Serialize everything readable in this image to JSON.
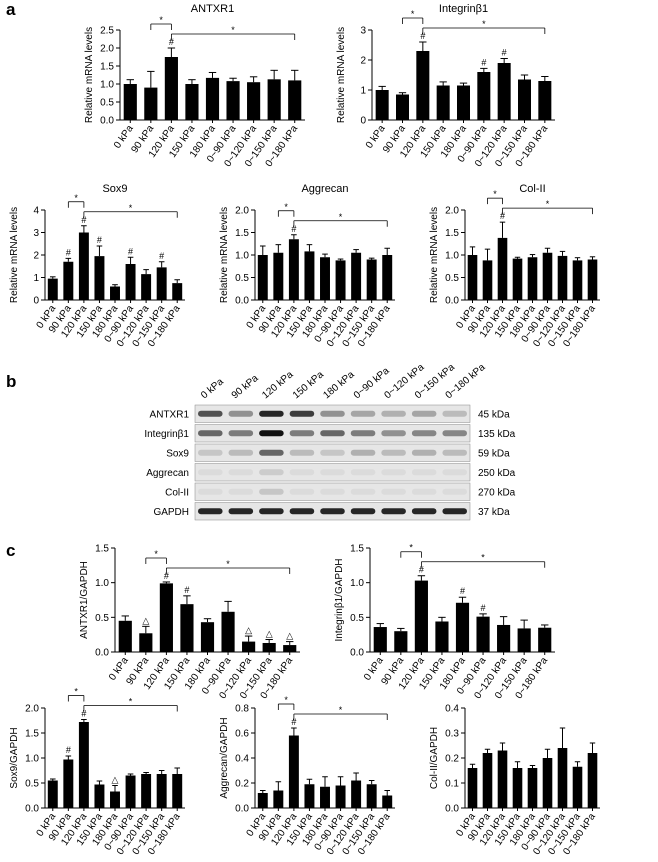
{
  "panel_labels": [
    "a",
    "b",
    "c"
  ],
  "chart_data": [
    {
      "type": "bar",
      "title": "ANTXR1",
      "ylabel": "Relative mRNA levels",
      "categories": [
        "0 kPa",
        "90 kPa",
        "120 kPa",
        "150 kPa",
        "180 kPa",
        "0~90 kPa",
        "0~120 kPa",
        "0~150 kPa",
        "0~180 kPa"
      ],
      "values": [
        1.0,
        0.9,
        1.75,
        1.0,
        1.17,
        1.08,
        1.05,
        1.13,
        1.1
      ],
      "errors": [
        0.12,
        0.45,
        0.25,
        0.12,
        0.15,
        0.08,
        0.15,
        0.25,
        0.28
      ],
      "markers": [
        null,
        null,
        "#",
        null,
        null,
        null,
        null,
        null,
        null
      ],
      "comparisons": [
        {
          "label": "*",
          "ref": 2,
          "targets": [
            1
          ]
        },
        {
          "label": "*",
          "ref": 2,
          "targets": [
            3,
            4,
            5,
            6,
            7,
            8
          ]
        }
      ],
      "color": "#000000",
      "ylim": [
        0,
        2.5
      ],
      "yticks": [
        {
          "value": 0,
          "label": "0.0"
        },
        0.5,
        {
          "value": 1,
          "label": "1.0"
        },
        1.5,
        {
          "value": 2,
          "label": "2.0"
        },
        2.5
      ]
    },
    {
      "type": "bar",
      "title": "Integrinβ1",
      "ylabel": "Relative mRNA levels",
      "categories": [
        "0 kPa",
        "90 kPa",
        "120 kPa",
        "150 kPa",
        "180 kPa",
        "0~90 kPa",
        "0~120 kPa",
        "0~150 kPa",
        "0~180 kPa"
      ],
      "values": [
        1.0,
        0.85,
        2.3,
        1.15,
        1.15,
        1.6,
        1.9,
        1.35,
        1.3
      ],
      "errors": [
        0.12,
        0.06,
        0.3,
        0.12,
        0.08,
        0.12,
        0.15,
        0.15,
        0.15
      ],
      "markers": [
        null,
        null,
        "#",
        null,
        null,
        "#",
        "#",
        null,
        null
      ],
      "comparisons": [
        {
          "label": "*",
          "ref": 2,
          "targets": [
            1
          ]
        },
        {
          "label": "*",
          "ref": 2,
          "targets": [
            3,
            4,
            5,
            6,
            7,
            8
          ]
        }
      ],
      "color": "#000000",
      "ylim": [
        0,
        3
      ],
      "yticks": [
        0,
        1,
        2,
        3
      ]
    },
    {
      "type": "bar",
      "title": "Sox9",
      "ylabel": "Relative mRNA levels",
      "categories": [
        "0 kPa",
        "90 kPa",
        "120 kPa",
        "150 kPa",
        "180 kPa",
        "0~90 kPa",
        "0~120 kPa",
        "0~150 kPa",
        "0~180 kPa"
      ],
      "values": [
        0.95,
        1.7,
        3.0,
        1.95,
        0.6,
        1.6,
        1.15,
        1.45,
        0.75
      ],
      "errors": [
        0.08,
        0.15,
        0.3,
        0.45,
        0.08,
        0.3,
        0.2,
        0.25,
        0.15
      ],
      "markers": [
        null,
        "#",
        "#",
        "#",
        null,
        "#",
        null,
        "#",
        null
      ],
      "comparisons": [
        {
          "label": "*",
          "ref": 2,
          "targets": [
            1
          ]
        },
        {
          "label": "*",
          "ref": 2,
          "targets": [
            3,
            4,
            5,
            6,
            7,
            8
          ]
        }
      ],
      "color": "#000000",
      "ylim": [
        0,
        4
      ],
      "yticks": [
        0,
        1,
        2,
        3,
        4
      ]
    },
    {
      "type": "bar",
      "title": "Aggrecan",
      "ylabel": "Relative mRNA levels",
      "categories": [
        "0 kPa",
        "90 kPa",
        "120 kPa",
        "150 kPa",
        "180 kPa",
        "0~90 kPa",
        "0~120 kPa",
        "0~150 kPa",
        "0~180 kPa"
      ],
      "values": [
        1.0,
        1.05,
        1.35,
        1.08,
        0.95,
        0.88,
        1.05,
        0.9,
        1.0
      ],
      "errors": [
        0.2,
        0.18,
        0.1,
        0.15,
        0.07,
        0.03,
        0.07,
        0.03,
        0.15
      ],
      "markers": [
        null,
        null,
        "#",
        null,
        null,
        null,
        null,
        null,
        null
      ],
      "comparisons": [
        {
          "label": "*",
          "ref": 2,
          "targets": [
            1
          ]
        },
        {
          "label": "*",
          "ref": 2,
          "targets": [
            3,
            4,
            5,
            6,
            7,
            8
          ]
        }
      ],
      "color": "#000000",
      "ylim": [
        0,
        2
      ],
      "yticks": [
        {
          "value": 0,
          "label": "0.0"
        },
        0.5,
        {
          "value": 1,
          "label": "1.0"
        },
        1.5,
        {
          "value": 2,
          "label": "2.0"
        }
      ]
    },
    {
      "type": "bar",
      "title": "Col-II",
      "ylabel": "Relative mRNA levels",
      "categories": [
        "0 kPa",
        "90 kPa",
        "120 kPa",
        "150 kPa",
        "180 kPa",
        "0~90 kPa",
        "0~120 kPa",
        "0~150 kPa",
        "0~180 kPa"
      ],
      "values": [
        1.0,
        0.88,
        1.38,
        0.92,
        0.95,
        1.05,
        0.98,
        0.88,
        0.9
      ],
      "errors": [
        0.18,
        0.25,
        0.35,
        0.03,
        0.06,
        0.1,
        0.1,
        0.06,
        0.06
      ],
      "markers": [
        null,
        null,
        "#",
        null,
        null,
        null,
        null,
        null,
        null
      ],
      "comparisons": [
        {
          "label": "*",
          "ref": 2,
          "targets": [
            1
          ]
        },
        {
          "label": "*",
          "ref": 2,
          "targets": [
            3,
            4,
            5,
            6,
            7,
            8
          ]
        }
      ],
      "color": "#000000",
      "ylim": [
        0,
        2
      ],
      "yticks": [
        {
          "value": 0,
          "label": "0.0"
        },
        0.5,
        {
          "value": 1,
          "label": "1.0"
        },
        1.5,
        {
          "value": 2,
          "label": "2.0"
        }
      ]
    },
    {
      "type": "bar",
      "ylabel": "ANTXR1/GAPDH",
      "categories": [
        "0 kPa",
        "90 kPa",
        "120 kPa",
        "150 kPa",
        "180 kPa",
        "0~90 kPa",
        "0~120 kPa",
        "0~150 kPa",
        "0~180 kPa"
      ],
      "values": [
        0.45,
        0.27,
        0.99,
        0.69,
        0.43,
        0.58,
        0.15,
        0.13,
        0.1
      ],
      "errors": [
        0.07,
        0.1,
        0.02,
        0.12,
        0.05,
        0.15,
        0.08,
        0.05,
        0.05
      ],
      "markers": [
        null,
        "△",
        "#",
        "#",
        null,
        null,
        "△",
        "△",
        "△"
      ],
      "comparisons": [
        {
          "label": "*",
          "ref": 2,
          "targets": [
            1
          ]
        },
        {
          "label": "*",
          "ref": 2,
          "targets": [
            3,
            4,
            5,
            6,
            7,
            8
          ]
        }
      ],
      "color": "#000000",
      "ylim": [
        0,
        1.5
      ],
      "yticks": [
        {
          "value": 0,
          "label": "0.0"
        },
        0.5,
        {
          "value": 1,
          "label": "1.0"
        },
        1.5
      ]
    },
    {
      "type": "bar",
      "ylabel": "Integrinβ1/GAPDH",
      "categories": [
        "0 kPa",
        "90 kPa",
        "120 kPa",
        "150 kPa",
        "180 kPa",
        "0~90 kPa",
        "0~120 kPa",
        "0~150 kPa",
        "0~180 kPa"
      ],
      "values": [
        0.36,
        0.3,
        1.03,
        0.44,
        0.71,
        0.51,
        0.39,
        0.34,
        0.35
      ],
      "errors": [
        0.05,
        0.04,
        0.07,
        0.06,
        0.08,
        0.04,
        0.12,
        0.12,
        0.04
      ],
      "markers": [
        null,
        null,
        "#",
        null,
        "#",
        "#",
        null,
        null,
        null
      ],
      "comparisons": [
        {
          "label": "*",
          "ref": 2,
          "targets": [
            1
          ]
        },
        {
          "label": "*",
          "ref": 2,
          "targets": [
            3,
            4,
            5,
            6,
            7,
            8
          ]
        }
      ],
      "color": "#000000",
      "ylim": [
        0,
        1.5
      ],
      "yticks": [
        {
          "value": 0,
          "label": "0.0"
        },
        0.5,
        {
          "value": 1,
          "label": "1.0"
        },
        1.5
      ]
    },
    {
      "type": "bar",
      "ylabel": "Sox9/GAPDH",
      "categories": [
        "0 kPa",
        "90 kPa",
        "120 kPa",
        "150 kPa",
        "180 kPa",
        "0~90 kPa",
        "0~120 kPa",
        "0~150 kPa",
        "0~180 kPa"
      ],
      "values": [
        0.55,
        0.97,
        1.72,
        0.47,
        0.33,
        0.65,
        0.68,
        0.68,
        0.68
      ],
      "errors": [
        0.03,
        0.07,
        0.05,
        0.07,
        0.12,
        0.03,
        0.03,
        0.07,
        0.12
      ],
      "markers": [
        null,
        "#",
        "#",
        null,
        "△",
        null,
        null,
        null,
        null
      ],
      "comparisons": [
        {
          "label": "*",
          "ref": 2,
          "targets": [
            1
          ]
        },
        {
          "label": "*",
          "ref": 2,
          "targets": [
            3,
            4,
            5,
            6,
            7,
            8
          ]
        }
      ],
      "color": "#000000",
      "ylim": [
        0,
        2
      ],
      "yticks": [
        {
          "value": 0,
          "label": "0.0"
        },
        0.5,
        {
          "value": 1,
          "label": "1.0"
        },
        1.5,
        {
          "value": 2,
          "label": "2.0"
        }
      ]
    },
    {
      "type": "bar",
      "ylabel": "Aggrecan/GAPDH",
      "categories": [
        "0 kPa",
        "90 kPa",
        "120 kPa",
        "150 kPa",
        "180 kPa",
        "0~90 kPa",
        "0~120 kPa",
        "0~150 kPa",
        "0~180 kPa"
      ],
      "values": [
        0.12,
        0.14,
        0.58,
        0.19,
        0.17,
        0.18,
        0.22,
        0.19,
        0.1
      ],
      "errors": [
        0.02,
        0.07,
        0.06,
        0.04,
        0.08,
        0.07,
        0.06,
        0.03,
        0.04
      ],
      "markers": [
        null,
        null,
        "#",
        null,
        null,
        null,
        null,
        null,
        null
      ],
      "comparisons": [
        {
          "label": "*",
          "ref": 2,
          "targets": [
            1
          ]
        },
        {
          "label": "*",
          "ref": 2,
          "targets": [
            3,
            4,
            5,
            6,
            7,
            8
          ]
        }
      ],
      "color": "#000000",
      "ylim": [
        0,
        0.8
      ],
      "yticks": [
        {
          "value": 0,
          "label": "0.0"
        },
        0.2,
        0.4,
        0.6,
        0.8
      ]
    },
    {
      "type": "bar",
      "ylabel": "Col-II/GAPDH",
      "categories": [
        "0 kPa",
        "90 kPa",
        "120 kPa",
        "150 kPa",
        "180 kPa",
        "0~90 kPa",
        "0~120 kPa",
        "0~150 kPa",
        "0~180 kPa"
      ],
      "values": [
        0.16,
        0.22,
        0.23,
        0.16,
        0.16,
        0.2,
        0.24,
        0.165,
        0.22
      ],
      "errors": [
        0.015,
        0.015,
        0.03,
        0.025,
        0.01,
        0.035,
        0.08,
        0.02,
        0.04
      ],
      "markers": [
        null,
        null,
        null,
        null,
        null,
        null,
        null,
        null,
        null
      ],
      "comparisons": [],
      "color": "#000000",
      "ylim": [
        0,
        0.4
      ],
      "yticks": [
        {
          "value": 0,
          "label": "0.0"
        },
        0.1,
        0.2,
        0.3,
        0.4
      ]
    }
  ],
  "blot": {
    "rows": [
      {
        "name": "ANTXR1",
        "size": "45 kDa"
      },
      {
        "name": "Integrinβ1",
        "size": "135 kDa"
      },
      {
        "name": "Sox9",
        "size": "59 kDa"
      },
      {
        "name": "Aggrecan",
        "size": "250 kDa"
      },
      {
        "name": "Col-II",
        "size": "270 kDa"
      },
      {
        "name": "GAPDH",
        "size": "37 kDa"
      }
    ]
  }
}
